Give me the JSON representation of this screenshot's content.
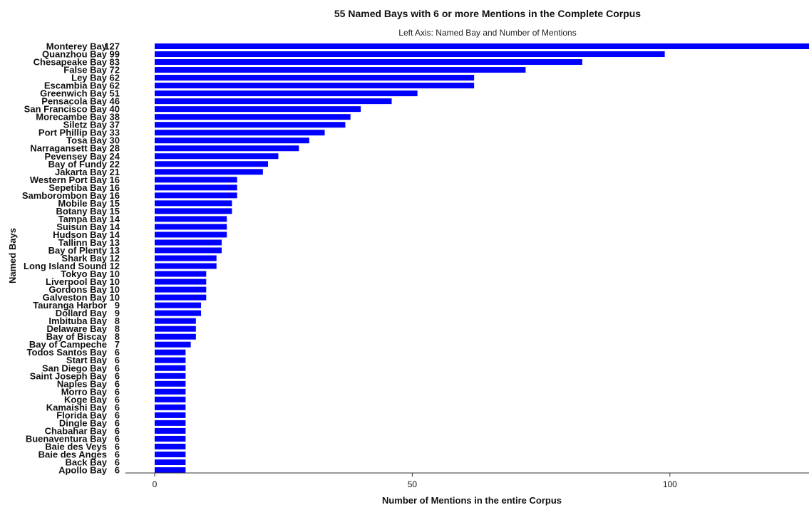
{
  "chart_data": {
    "type": "bar",
    "orientation": "horizontal",
    "title": "55 Named Bays with 6 or more Mentions in the Complete Corpus",
    "subtitle": "Left Axis: Named Bay and Number of Mentions",
    "xlabel": "Number of Mentions in the entire Corpus",
    "ylabel": "Named Bays",
    "xlim": [
      0,
      127
    ],
    "x_ticks": [
      0,
      50,
      100
    ],
    "grid": false,
    "bar_color": "#0000ff",
    "categories": [
      "Monterey Bay",
      "Quanzhou Bay",
      "Chesapeake Bay",
      "False Bay",
      "Ley Bay",
      "Escambia Bay",
      "Greenwich Bay",
      "Pensacola Bay",
      "San Francisco Bay",
      "Morecambe Bay",
      "Siletz Bay",
      "Port Phillip Bay",
      "Tosa Bay",
      "Narragansett Bay",
      "Pevensey Bay",
      "Bay of Fundy",
      "Jakarta Bay",
      "Western Port Bay",
      "Sepetiba Bay",
      "Samborombon Bay",
      "Mobile Bay",
      "Botany Bay",
      "Tampa Bay",
      "Suisun Bay",
      "Hudson Bay",
      "Tallinn Bay",
      "Bay of Plenty",
      "Shark Bay",
      "Long Island Sound",
      "Tokyo Bay",
      "Liverpool Bay",
      "Gordons Bay",
      "Galveston Bay",
      "Tauranga Harbor",
      "Dollard Bay",
      "Imbituba Bay",
      "Delaware Bay",
      "Bay of Biscay",
      "Bay of Campeche",
      "Todos Santos Bay",
      "Start Bay",
      "San Diego Bay",
      "Saint Joseph Bay",
      "Naples Bay",
      "Morro Bay",
      "Koge Bay",
      "Kamaishi Bay",
      "Florida Bay",
      "Dingle Bay",
      "Chabahar Bay",
      "Buenaventura Bay",
      "Baie des Veys",
      "Baie des Anges",
      "Back Bay",
      "Apollo Bay"
    ],
    "values": [
      127,
      99,
      83,
      72,
      62,
      62,
      51,
      46,
      40,
      38,
      37,
      33,
      30,
      28,
      24,
      22,
      21,
      16,
      16,
      16,
      15,
      15,
      14,
      14,
      14,
      13,
      13,
      12,
      12,
      10,
      10,
      10,
      10,
      9,
      9,
      8,
      8,
      8,
      7,
      6,
      6,
      6,
      6,
      6,
      6,
      6,
      6,
      6,
      6,
      6,
      6,
      6,
      6,
      6,
      6
    ]
  }
}
